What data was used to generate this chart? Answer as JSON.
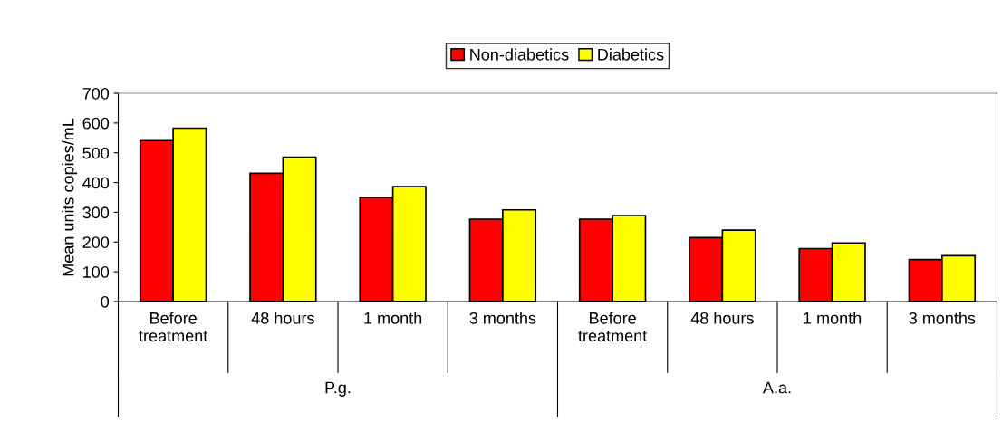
{
  "chart_data": {
    "type": "bar",
    "ylabel": "Mean units copies/mL",
    "categories": [
      "Before\ntreatment",
      "48 hours",
      "1 month",
      "3 months",
      "Before\ntreatment",
      "48 hours",
      "1 month",
      "3 months"
    ],
    "series": [
      {
        "name": "Non-diabetics",
        "color": "#ff0000",
        "values": [
          541,
          431,
          350,
          277,
          277,
          215,
          178,
          141
        ]
      },
      {
        "name": "Diabetics",
        "color": "#ffff00",
        "values": [
          583,
          485,
          386,
          308,
          289,
          240,
          197,
          154
        ]
      }
    ],
    "annotations": [
      "P.g.",
      "A.a."
    ],
    "ylim": [
      0,
      700
    ],
    "yticks": [
      0,
      100,
      200,
      300,
      400,
      500,
      600,
      700
    ],
    "legend": "top",
    "grid": false
  }
}
